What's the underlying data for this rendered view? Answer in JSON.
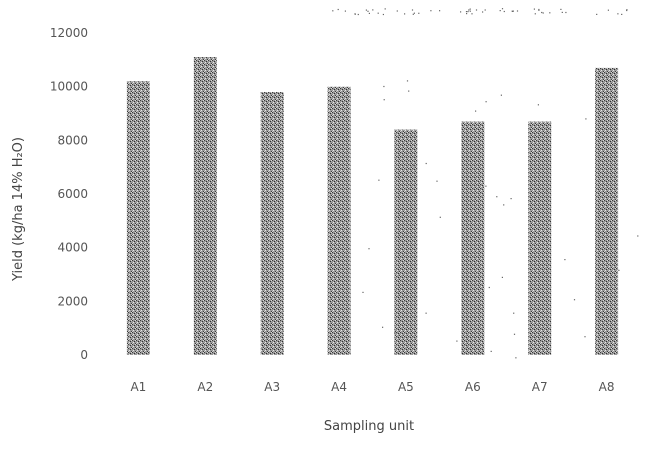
{
  "chart_data": {
    "type": "bar",
    "title": "",
    "xlabel": "Sampling unit",
    "ylabel": "Yield (kg/ha 14% H₂O)",
    "categories": [
      "A1",
      "A2",
      "A3",
      "A4",
      "A5",
      "A6",
      "A7",
      "A8"
    ],
    "values": [
      10200,
      11100,
      9800,
      10000,
      8400,
      8700,
      8700,
      10700
    ],
    "ylim": [
      0,
      12000
    ],
    "yticks": [
      0,
      2000,
      4000,
      6000,
      8000,
      10000,
      12000
    ],
    "grid": false,
    "legend": "none",
    "bar_color": "#7a7a7a"
  }
}
